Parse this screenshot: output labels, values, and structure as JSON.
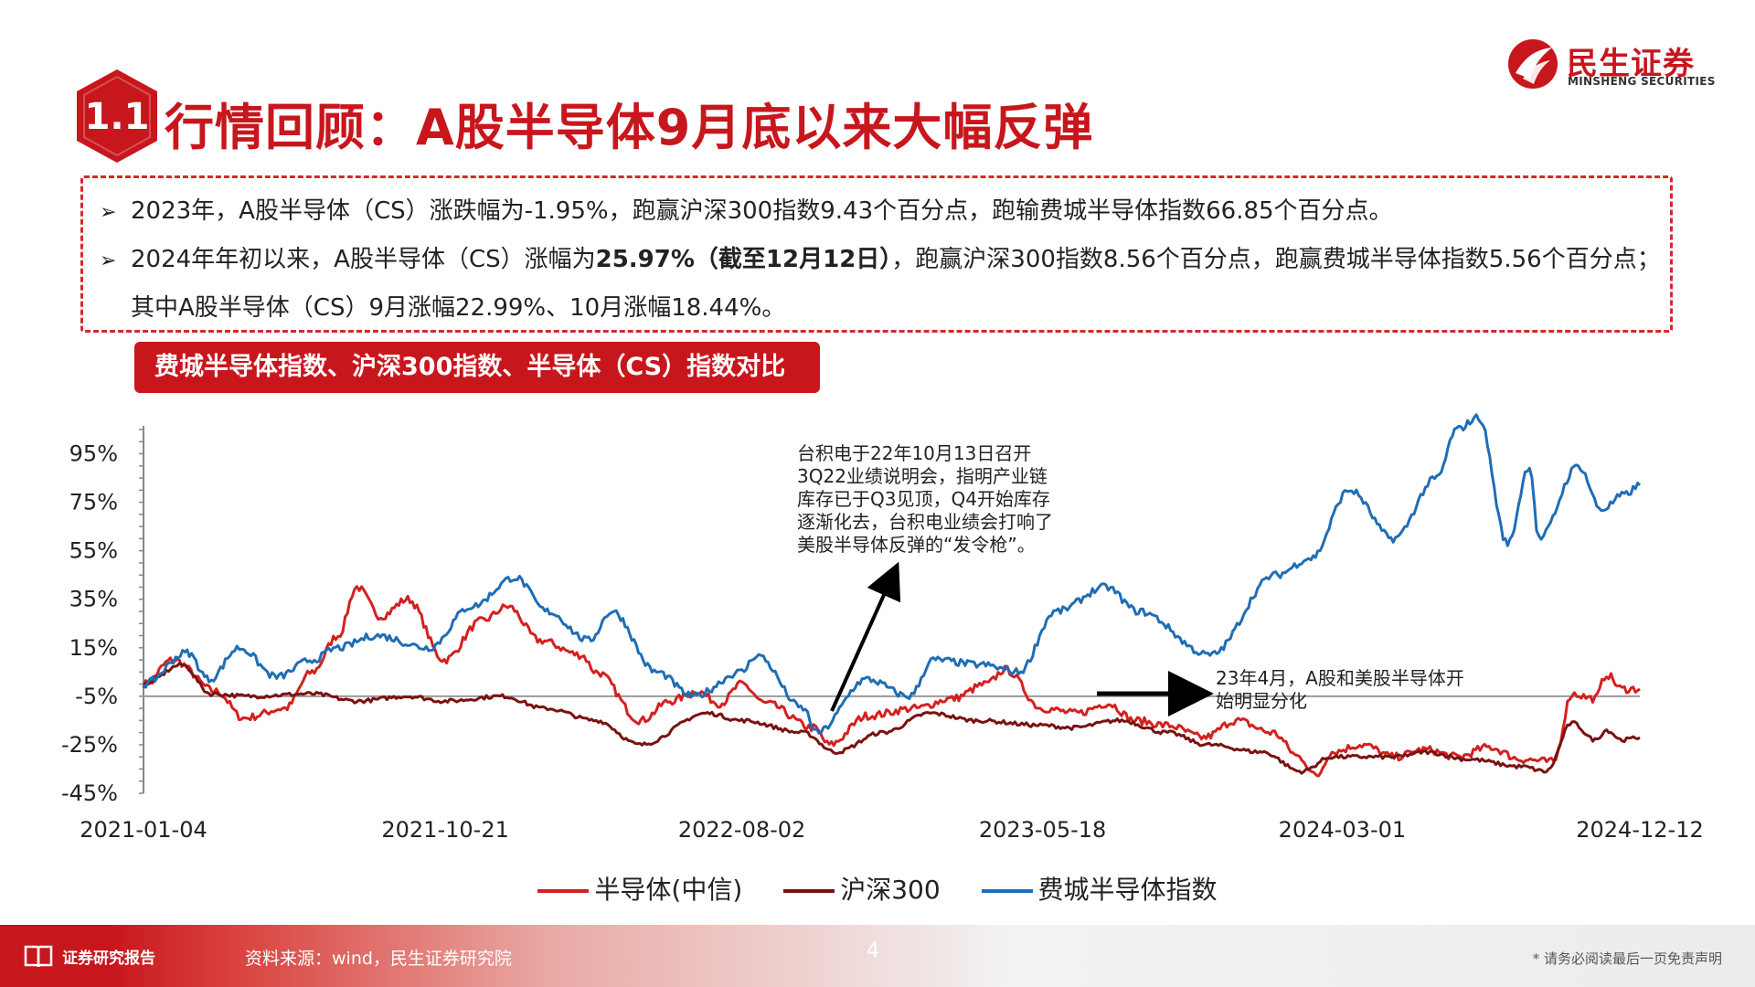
{
  "header": {
    "section_number": "1.1",
    "title": "行情回顾：A股半导体9月底以来大幅反弹",
    "logo_cn": "民生证券",
    "logo_en": "MINSHENG SECURITIES"
  },
  "summary": {
    "bullet1": "2023年，A股半导体（CS）涨跌幅为-1.95%，跑赢沪深300指数9.43个百分点，跑输费城半导体指数66.85个百分点。",
    "bullet2_prefix": "2024年年初以来，A股半导体（CS）涨幅为",
    "bullet2_bold": "25.97%（截至12月12日）",
    "bullet2_suffix": "，跑赢沪深300指数8.56个百分点，跑赢费城半导体指数5.56个百分点；",
    "bullet2_line2": "其中A股半导体（CS）9月涨幅22.99%、10月涨幅18.44%。"
  },
  "chart_title": "费城半导体指数、沪深300指数、半导体（CS）指数对比",
  "annotations": {
    "tsmc_lines": [
      "台积电于22年10月13日召开",
      "3Q22业绩说明会，指明产业链",
      "库存已于Q3见顶，Q4开始库存",
      "逐渐化去，台积电业绩会打响了",
      "美股半导体反弹的“发令枪”。"
    ],
    "divergence_lines": [
      "23年4月，A股和美股半导体开",
      "始明显分化"
    ]
  },
  "footer": {
    "report_label": "证券研究报告",
    "source": "资料来源：wind，民生证券研究院",
    "page": "4",
    "disclaimer": "* 请务必阅读最后一页免责声明"
  },
  "colors": {
    "brand_red": "#c8161d",
    "semi_cs": "#d42020",
    "hs300": "#7a1212",
    "sox": "#1f6db5"
  },
  "chart_data": {
    "type": "line",
    "x_ticks": [
      "2021-01-04",
      "2021-10-21",
      "2022-08-02",
      "2023-05-18",
      "2024-03-01",
      "2024-12-12"
    ],
    "y_ticks": [
      "95%",
      "75%",
      "55%",
      "35%",
      "15%",
      "-5%",
      "-25%",
      "-45%"
    ],
    "ylim": [
      -45,
      105
    ],
    "x_start": "2021-01-04",
    "x_end": "2024-12-12",
    "series": [
      {
        "name": "半导体(中信)",
        "color": "#d42020",
        "points": [
          [
            "2021-01-04",
            0
          ],
          [
            "2021-02-01",
            10
          ],
          [
            "2021-03-15",
            -3
          ],
          [
            "2021-04-10",
            -14
          ],
          [
            "2021-05-20",
            -10
          ],
          [
            "2021-06-15",
            5
          ],
          [
            "2021-07-10",
            20
          ],
          [
            "2021-07-28",
            40
          ],
          [
            "2021-08-20",
            28
          ],
          [
            "2021-09-15",
            35
          ],
          [
            "2021-10-20",
            10
          ],
          [
            "2021-11-25",
            26
          ],
          [
            "2021-12-20",
            32
          ],
          [
            "2022-01-20",
            18
          ],
          [
            "2022-03-01",
            12
          ],
          [
            "2022-03-15",
            5
          ],
          [
            "2022-04-27",
            -15
          ],
          [
            "2022-05-25",
            -7
          ],
          [
            "2022-06-20",
            -3
          ],
          [
            "2022-07-12",
            -8
          ],
          [
            "2022-08-02",
            0
          ],
          [
            "2022-08-25",
            -8
          ],
          [
            "2022-10-10",
            -18
          ],
          [
            "2022-10-25",
            -25
          ],
          [
            "2022-12-01",
            -13
          ],
          [
            "2023-01-15",
            -10
          ],
          [
            "2023-02-20",
            -6
          ],
          [
            "2023-03-25",
            0
          ],
          [
            "2023-04-12",
            6
          ],
          [
            "2023-05-18",
            -10
          ],
          [
            "2023-06-20",
            -12
          ],
          [
            "2023-07-20",
            -8
          ],
          [
            "2023-08-15",
            -15
          ],
          [
            "2023-09-15",
            -17
          ],
          [
            "2023-10-20",
            -22
          ],
          [
            "2023-11-20",
            -15
          ],
          [
            "2023-12-25",
            -20
          ],
          [
            "2024-01-20",
            -30
          ],
          [
            "2024-02-05",
            -38
          ],
          [
            "2024-02-20",
            -28
          ],
          [
            "2024-03-20",
            -25
          ],
          [
            "2024-04-20",
            -30
          ],
          [
            "2024-05-20",
            -27
          ],
          [
            "2024-06-20",
            -30
          ],
          [
            "2024-07-20",
            -26
          ],
          [
            "2024-08-20",
            -31
          ],
          [
            "2024-09-20",
            -32
          ],
          [
            "2024-10-08",
            -4
          ],
          [
            "2024-10-30",
            -6
          ],
          [
            "2024-11-10",
            4
          ],
          [
            "2024-11-25",
            -2
          ],
          [
            "2024-12-12",
            -2
          ]
        ]
      },
      {
        "name": "沪深300",
        "color": "#7a1212",
        "points": [
          [
            "2021-01-04",
            0
          ],
          [
            "2021-02-10",
            8
          ],
          [
            "2021-03-10",
            -4
          ],
          [
            "2021-04-15",
            -5
          ],
          [
            "2021-06-15",
            -4
          ],
          [
            "2021-07-28",
            -7
          ],
          [
            "2021-09-15",
            -5
          ],
          [
            "2021-10-21",
            -7
          ],
          [
            "2021-12-15",
            -5
          ],
          [
            "2022-01-25",
            -10
          ],
          [
            "2022-03-15",
            -15
          ],
          [
            "2022-04-26",
            -25
          ],
          [
            "2022-06-30",
            -12
          ],
          [
            "2022-08-02",
            -15
          ],
          [
            "2022-09-30",
            -20
          ],
          [
            "2022-10-31",
            -28
          ],
          [
            "2022-12-15",
            -20
          ],
          [
            "2023-01-30",
            -12
          ],
          [
            "2023-03-15",
            -15
          ],
          [
            "2023-05-18",
            -17
          ],
          [
            "2023-06-15",
            -18
          ],
          [
            "2023-07-31",
            -15
          ],
          [
            "2023-09-15",
            -20
          ],
          [
            "2023-10-23",
            -25
          ],
          [
            "2023-12-15",
            -28
          ],
          [
            "2024-01-22",
            -36
          ],
          [
            "2024-02-20",
            -30
          ],
          [
            "2024-04-20",
            -30
          ],
          [
            "2024-05-20",
            -28
          ],
          [
            "2024-06-30",
            -31
          ],
          [
            "2024-08-20",
            -34
          ],
          [
            "2024-09-13",
            -36
          ],
          [
            "2024-10-08",
            -16
          ],
          [
            "2024-10-30",
            -23
          ],
          [
            "2024-11-10",
            -19
          ],
          [
            "2024-11-25",
            -23
          ],
          [
            "2024-12-12",
            -22
          ]
        ]
      },
      {
        "name": "费城半导体指数",
        "color": "#1f6db5",
        "points": [
          [
            "2021-01-04",
            0
          ],
          [
            "2021-02-15",
            13
          ],
          [
            "2021-03-08",
            2
          ],
          [
            "2021-04-06",
            15
          ],
          [
            "2021-05-12",
            3
          ],
          [
            "2021-06-15",
            10
          ],
          [
            "2021-07-10",
            15
          ],
          [
            "2021-08-15",
            20
          ],
          [
            "2021-10-05",
            15
          ],
          [
            "2021-11-15",
            32
          ],
          [
            "2021-12-27",
            44
          ],
          [
            "2022-01-27",
            30
          ],
          [
            "2022-03-08",
            18
          ],
          [
            "2022-03-30",
            30
          ],
          [
            "2022-05-12",
            5
          ],
          [
            "2022-06-16",
            -5
          ],
          [
            "2022-08-02",
            5
          ],
          [
            "2022-08-16",
            12
          ],
          [
            "2022-09-30",
            -10
          ],
          [
            "2022-10-13",
            -20
          ],
          [
            "2022-11-30",
            2
          ],
          [
            "2023-01-10",
            -5
          ],
          [
            "2023-02-02",
            10
          ],
          [
            "2023-03-20",
            8
          ],
          [
            "2023-04-25",
            5
          ],
          [
            "2023-05-31",
            30
          ],
          [
            "2023-07-18",
            40
          ],
          [
            "2023-08-18",
            30
          ],
          [
            "2023-10-26",
            12
          ],
          [
            "2023-12-28",
            45
          ],
          [
            "2024-01-31",
            52
          ],
          [
            "2024-03-08",
            80
          ],
          [
            "2024-04-19",
            60
          ],
          [
            "2024-05-31",
            85
          ],
          [
            "2024-06-19",
            105
          ],
          [
            "2024-07-10",
            110
          ],
          [
            "2024-08-07",
            58
          ],
          [
            "2024-08-28",
            90
          ],
          [
            "2024-09-06",
            60
          ],
          [
            "2024-10-14",
            90
          ],
          [
            "2024-11-05",
            72
          ],
          [
            "2024-11-27",
            78
          ],
          [
            "2024-12-12",
            82
          ]
        ]
      }
    ]
  }
}
